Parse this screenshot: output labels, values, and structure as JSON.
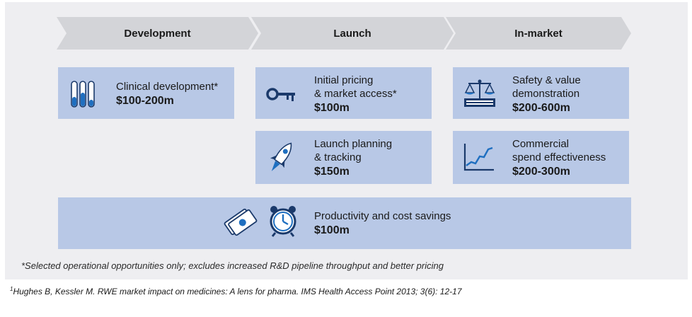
{
  "stages": [
    "Development",
    "Launch",
    "In-market"
  ],
  "boxes": {
    "clinical": {
      "label": "Clinical development*",
      "value": "$100-200m",
      "icon": "test-tubes-icon"
    },
    "pricing": {
      "line1": "Initial pricing",
      "line2": "& market access*",
      "value": "$100m",
      "icon": "key-icon"
    },
    "safety": {
      "line1": "Safety & value",
      "line2": "demonstration",
      "value": "$200-600m",
      "icon": "balance-scale-icon"
    },
    "launch": {
      "line1": "Launch planning",
      "line2": "& tracking",
      "value": "$150m",
      "icon": "rocket-icon"
    },
    "commercial": {
      "line1": "Commercial",
      "line2": "spend effectiveness",
      "value": "$200-300m",
      "icon": "line-chart-icon"
    },
    "productivity": {
      "label": "Productivity and cost savings",
      "value": "$100m",
      "icons": [
        "money-icon",
        "alarm-clock-icon"
      ]
    }
  },
  "footnote": "*Selected operational opportunities only; excludes increased R&D pipeline throughput and better pricing",
  "reference": {
    "marker": "1",
    "text": "Hughes B, Kessler M. RWE market impact on medicines: A lens for pharma. IMS Health Access Point 2013; 3(6): 12-17"
  },
  "colors": {
    "panel": "#eeeef1",
    "chevron": "#d3d4d8",
    "box": "#b8c8e6",
    "icon_blue": "#1f6fc0",
    "icon_dark": "#1b3a6b"
  }
}
